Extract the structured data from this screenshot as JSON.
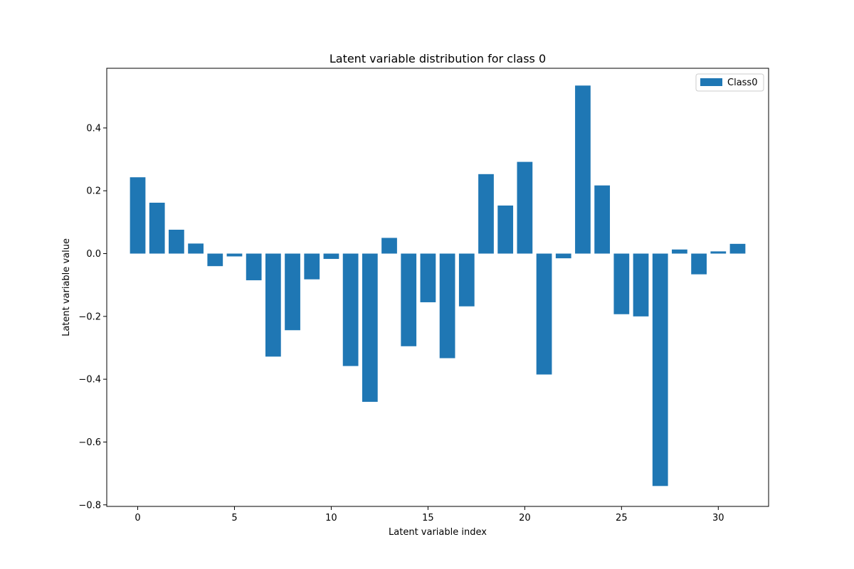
{
  "chart_data": {
    "type": "bar",
    "title": "Latent variable distribution for class 0",
    "xlabel": "Latent variable index",
    "ylabel": "Latent variable value",
    "xlim": [
      -1.6,
      32.6
    ],
    "ylim": [
      -0.805,
      0.59
    ],
    "x_ticks": [
      0,
      5,
      10,
      15,
      20,
      25,
      30
    ],
    "y_ticks": [
      -0.8,
      -0.6,
      -0.4,
      -0.2,
      0.0,
      0.2,
      0.4
    ],
    "y_tick_labels": [
      "−0.8",
      "−0.6",
      "−0.4",
      "−0.2",
      "0.0",
      "0.2",
      "0.4"
    ],
    "legend_position": "top-right",
    "grid": false,
    "series": [
      {
        "name": "Class0",
        "color": "#1f77b4",
        "x": [
          0,
          1,
          2,
          3,
          4,
          5,
          6,
          7,
          8,
          9,
          10,
          11,
          12,
          13,
          14,
          15,
          16,
          17,
          18,
          19,
          20,
          21,
          22,
          23,
          24,
          25,
          26,
          27,
          28,
          29,
          30,
          31
        ],
        "values": [
          0.243,
          0.162,
          0.076,
          0.032,
          -0.04,
          -0.009,
          -0.085,
          -0.328,
          -0.244,
          -0.082,
          -0.017,
          -0.358,
          -0.472,
          0.05,
          -0.295,
          -0.155,
          -0.333,
          -0.168,
          0.253,
          0.153,
          0.292,
          -0.385,
          -0.015,
          0.535,
          0.217,
          -0.193,
          -0.2,
          -0.74,
          0.013,
          -0.066,
          0.007,
          0.031
        ]
      }
    ]
  }
}
